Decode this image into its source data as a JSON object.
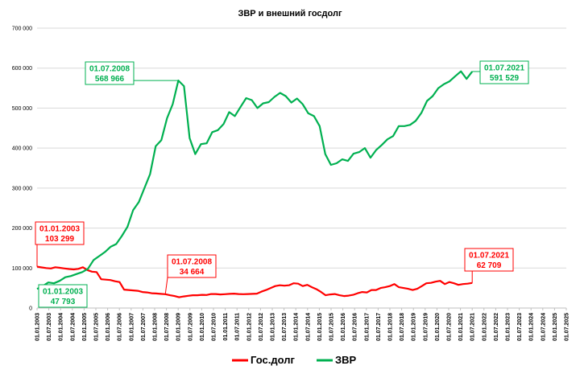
{
  "chart_data": {
    "type": "line",
    "title": "ЗВР и внешний госдолг",
    "ylim": [
      0,
      700000
    ],
    "yticks": [
      0,
      100000,
      200000,
      300000,
      400000,
      500000,
      600000,
      700000
    ],
    "ytick_labels": [
      "0",
      "100 000",
      "200 000",
      "300 000",
      "400 000",
      "500 000",
      "600 000",
      "700 000"
    ],
    "grid": true,
    "legend": "bottom",
    "x_labels": [
      "01.01.2003",
      "01.07.2003",
      "01.01.2004",
      "01.07.2004",
      "01.01.2005",
      "01.07.2005",
      "01.01.2006",
      "01.07.2006",
      "01.01.2007",
      "01.07.2007",
      "01.01.2008",
      "01.07.2008",
      "01.01.2009",
      "01.07.2009",
      "01.01.2010",
      "01.07.2010",
      "01.01.2011",
      "01.07.2011",
      "01.01.2012",
      "01.07.2012",
      "01.01.2013",
      "01.07.2013",
      "01.01.2014",
      "01.07.2014",
      "01.01.2015",
      "01.07.2015",
      "01.01.2016",
      "01.07.2016",
      "01.01.2017",
      "01.07.2017",
      "01.01.2018",
      "01.07.2018",
      "01.01.2019",
      "01.07.2019",
      "01.01.2020",
      "01.07.2020",
      "01.01.2021",
      "01.07.2021",
      "01.01.2022",
      "01.07.2022",
      "01.01.2023",
      "01.07.2023",
      "01.01.2024",
      "01.07.2024",
      "01.01.2025",
      "01.07.2025"
    ],
    "series": [
      {
        "name": "Гос.долг",
        "color": "#ff0000",
        "x_from": "01.01.2003",
        "x_to": "01.07.2021",
        "values": [
          103299,
          101500,
          100000,
          99000,
          102000,
          100500,
          99000,
          97500,
          96500,
          98000,
          102000,
          95000,
          91000,
          90000,
          72000,
          71000,
          70000,
          67000,
          65000,
          46000,
          45000,
          44000,
          43000,
          40000,
          39000,
          37000,
          36500,
          35500,
          34664,
          32000,
          30000,
          27000,
          29000,
          30500,
          32000,
          32000,
          33000,
          32500,
          35000,
          35000,
          34000,
          34500,
          35500,
          36000,
          35000,
          34500,
          35000,
          35500,
          36000,
          41000,
          45000,
          50000,
          55000,
          57000,
          56000,
          57000,
          62000,
          61000,
          55000,
          58000,
          52000,
          47000,
          40000,
          32000,
          34000,
          35000,
          32000,
          30000,
          31000,
          33000,
          37000,
          40000,
          39000,
          45000,
          45000,
          50000,
          52000,
          55000,
          60000,
          52000,
          50000,
          48000,
          45000,
          48000,
          55000,
          62000,
          63000,
          66000,
          68000,
          60000,
          65000,
          62000,
          58000,
          60000,
          61000,
          62709
        ]
      },
      {
        "name": "ЗВР",
        "color": "#00b050",
        "x_from": "01.01.2003",
        "x_to": "01.07.2021",
        "values": [
          47793,
          55000,
          64000,
          62000,
          68000,
          77000,
          80000,
          85000,
          90000,
          98000,
          120000,
          130000,
          140000,
          153000,
          160000,
          180000,
          203000,
          245000,
          265000,
          300000,
          335000,
          405000,
          420000,
          475000,
          510000,
          568966,
          555000,
          425000,
          385000,
          410000,
          412000,
          440000,
          445000,
          460000,
          490000,
          480000,
          503000,
          525000,
          520000,
          500000,
          512000,
          515000,
          528000,
          538000,
          530000,
          514000,
          524000,
          510000,
          487000,
          480000,
          455000,
          385000,
          358000,
          362000,
          372000,
          368000,
          386000,
          390000,
          400000,
          376000,
          395000,
          408000,
          422000,
          430000,
          455000,
          455000,
          458000,
          468000,
          488000,
          518000,
          530000,
          550000,
          560000,
          567000,
          580000,
          592000,
          573000,
          591529
        ]
      }
    ],
    "callouts": [
      {
        "series": "Гос.долг",
        "index": 0,
        "date": "01.01.2003",
        "value": "103 299",
        "color": "#ff0000"
      },
      {
        "series": "ЗВР",
        "index": 0,
        "date": "01.01.2003",
        "value": "47 793",
        "color": "#00b050"
      },
      {
        "series": "ЗВР",
        "index": 25,
        "date": "01.07.2008",
        "value": "568 966",
        "color": "#00b050"
      },
      {
        "series": "Гос.долг",
        "index": 28,
        "date": "01.07.2008",
        "value": "34 664",
        "color": "#ff0000"
      },
      {
        "series": "ЗВР",
        "index": 77,
        "date": "01.07.2021",
        "value": "591 529",
        "color": "#00b050"
      },
      {
        "series": "Гос.долг",
        "index": 95,
        "date": "01.07.2021",
        "value": "62 709",
        "color": "#ff0000"
      }
    ]
  }
}
